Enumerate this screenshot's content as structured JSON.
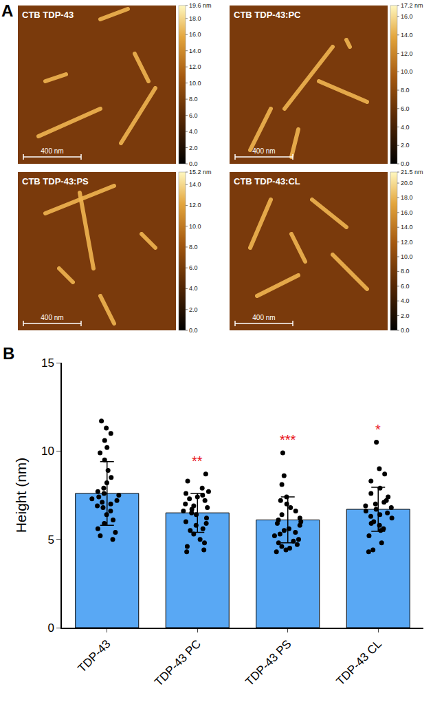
{
  "panel_letters": [
    "A",
    "B"
  ],
  "images": [
    {
      "title": "CTB TDP-43",
      "scale_bar": "400 nm",
      "colorbar_ticks": [
        {
          "value": 19.6,
          "label": "19.6 nm"
        },
        {
          "value": 18,
          "label": "18.0"
        },
        {
          "value": 16,
          "label": "16.0"
        },
        {
          "value": 14,
          "label": "14.0"
        },
        {
          "value": 12,
          "label": "12.0"
        },
        {
          "value": 10,
          "label": "10.0"
        },
        {
          "value": 8,
          "label": "8.0"
        },
        {
          "value": 6,
          "label": "6.0"
        },
        {
          "value": 4,
          "label": "4.0"
        },
        {
          "value": 2,
          "label": "2.0"
        },
        {
          "value": 0,
          "label": "0.0"
        }
      ]
    },
    {
      "title": "CTB TDP-43:PC",
      "scale_bar": "400 nm",
      "colorbar_ticks": [
        {
          "value": 17.2,
          "label": "17.2 nm"
        },
        {
          "value": 16,
          "label": "16.0"
        },
        {
          "value": 14,
          "label": "14.0"
        },
        {
          "value": 12,
          "label": "12.0"
        },
        {
          "value": 10,
          "label": "10.0"
        },
        {
          "value": 8,
          "label": "8.0"
        },
        {
          "value": 6,
          "label": "6.0"
        },
        {
          "value": 4,
          "label": "4.0"
        },
        {
          "value": 2,
          "label": "2.0"
        },
        {
          "value": 0,
          "label": "0.0"
        }
      ]
    },
    {
      "title": "CTB TDP-43:PS",
      "scale_bar": "400 nm",
      "colorbar_ticks": [
        {
          "value": 15.2,
          "label": "15.2 nm"
        },
        {
          "value": 14,
          "label": "14.0"
        },
        {
          "value": 12,
          "label": "12.0"
        },
        {
          "value": 10,
          "label": "10.0"
        },
        {
          "value": 8,
          "label": "8.0"
        },
        {
          "value": 6,
          "label": "6.0"
        },
        {
          "value": 4,
          "label": "4.0"
        },
        {
          "value": 2,
          "label": "2.0"
        },
        {
          "value": 0,
          "label": "0.0"
        }
      ]
    },
    {
      "title": "CTB TDP-43:CL",
      "scale_bar": "400 nm",
      "colorbar_ticks": [
        {
          "value": 21.5,
          "label": "21.5 nm"
        },
        {
          "value": 20,
          "label": "20.0"
        },
        {
          "value": 18,
          "label": "18.0"
        },
        {
          "value": 16,
          "label": "16.0"
        },
        {
          "value": 14,
          "label": "14.0"
        },
        {
          "value": 12,
          "label": "12.0"
        },
        {
          "value": 10,
          "label": "10.0"
        },
        {
          "value": 8,
          "label": "8.0"
        },
        {
          "value": 6,
          "label": "6.0"
        },
        {
          "value": 4,
          "label": "4.0"
        },
        {
          "value": 2,
          "label": "2.0"
        },
        {
          "value": 0,
          "label": "0.0"
        }
      ]
    }
  ],
  "chart_data": {
    "type": "bar",
    "y_label": "Height (nm)",
    "categories": [
      "TDP-43",
      "TDP-43 PC",
      "TDP-43 PS",
      "TDP-43 CL"
    ],
    "values": [
      7.6,
      6.5,
      6.1,
      6.7
    ],
    "errors": [
      1.8,
      1.1,
      1.3,
      1.25
    ],
    "points": [
      [
        11.7,
        11.3,
        11.0,
        10.6,
        10.2,
        9.9,
        9.5,
        8.9,
        8.5,
        8.2,
        7.9,
        7.7,
        7.6,
        7.5,
        7.4,
        7.3,
        7.2,
        7.1,
        7.0,
        6.9,
        6.8,
        6.6,
        6.4,
        6.1,
        5.9,
        5.6,
        5.4,
        5.2,
        5.0
      ],
      [
        8.7,
        8.3,
        7.9,
        7.7,
        7.6,
        7.5,
        7.4,
        7.3,
        7.2,
        7.0,
        6.9,
        6.8,
        6.7,
        6.6,
        6.5,
        6.4,
        6.2,
        6.0,
        5.9,
        5.8,
        5.6,
        5.5,
        5.3,
        5.0,
        4.8,
        4.6,
        4.4,
        4.3
      ],
      [
        9.9,
        8.6,
        8.1,
        7.4,
        7.2,
        7.0,
        6.8,
        6.6,
        6.4,
        6.2,
        6.1,
        6.0,
        5.9,
        5.8,
        5.6,
        5.5,
        5.4,
        5.3,
        5.2,
        5.0,
        4.9,
        4.8,
        4.7,
        4.6,
        4.5,
        4.4,
        4.3
      ],
      [
        10.5,
        9.0,
        8.7,
        8.3,
        7.9,
        7.6,
        7.4,
        7.2,
        7.1,
        7.0,
        6.9,
        6.8,
        6.7,
        6.6,
        6.5,
        6.4,
        6.3,
        6.2,
        6.0,
        5.9,
        5.8,
        5.6,
        5.5,
        5.2,
        4.8,
        4.4,
        4.3
      ]
    ],
    "significance": [
      null,
      "**",
      "***",
      "*"
    ],
    "significance_color": "#e8141c",
    "color": "#59a8f4",
    "point_color": "#000000",
    "marker": "circle",
    "ylim": [
      0,
      15
    ],
    "yticks": [
      0,
      5,
      10,
      15
    ],
    "grid": false
  }
}
